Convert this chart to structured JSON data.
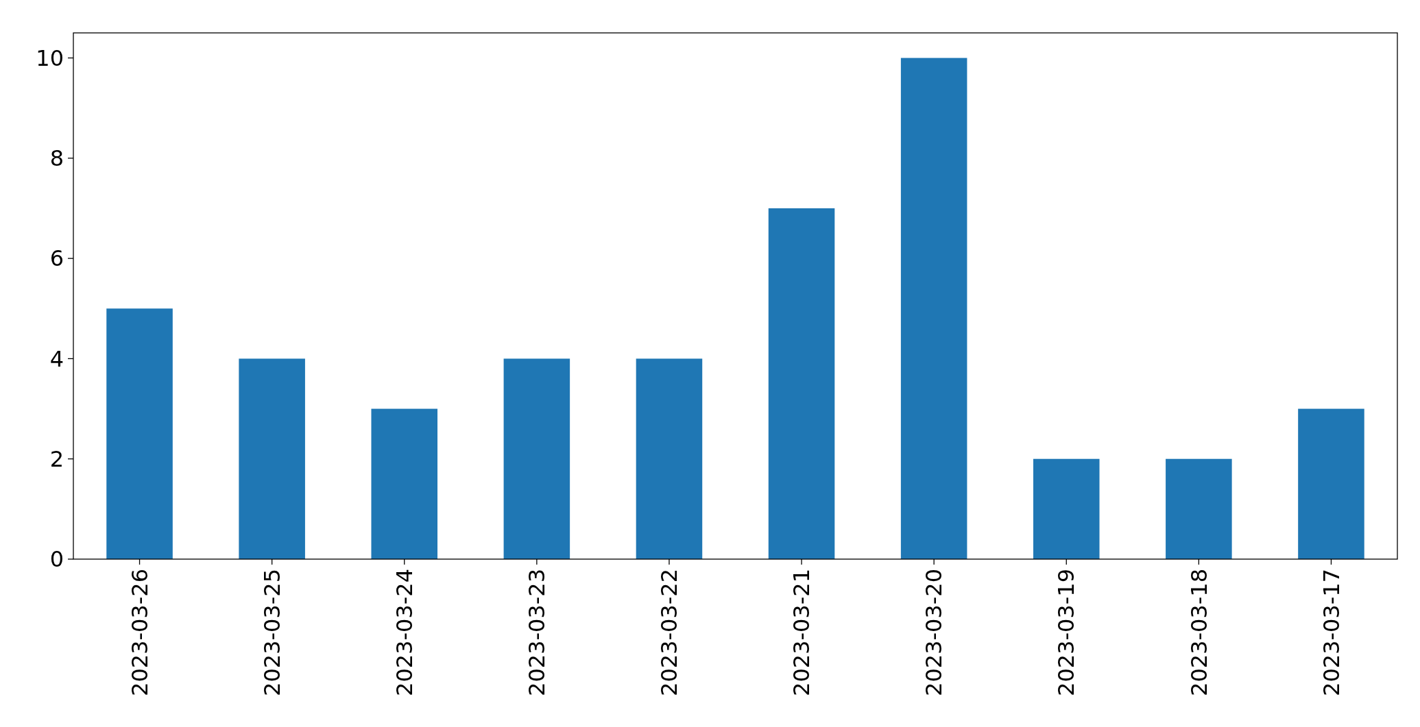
{
  "chart_data": {
    "type": "bar",
    "categories": [
      "2023-03-26",
      "2023-03-25",
      "2023-03-24",
      "2023-03-23",
      "2023-03-22",
      "2023-03-21",
      "2023-03-20",
      "2023-03-19",
      "2023-03-18",
      "2023-03-17"
    ],
    "values": [
      5,
      4,
      3,
      4,
      4,
      7,
      10,
      2,
      2,
      3
    ],
    "color": "#1f77b4",
    "ylim": [
      0,
      10.5
    ],
    "yticks": [
      0,
      2,
      4,
      6,
      8,
      10
    ],
    "grid": false
  }
}
